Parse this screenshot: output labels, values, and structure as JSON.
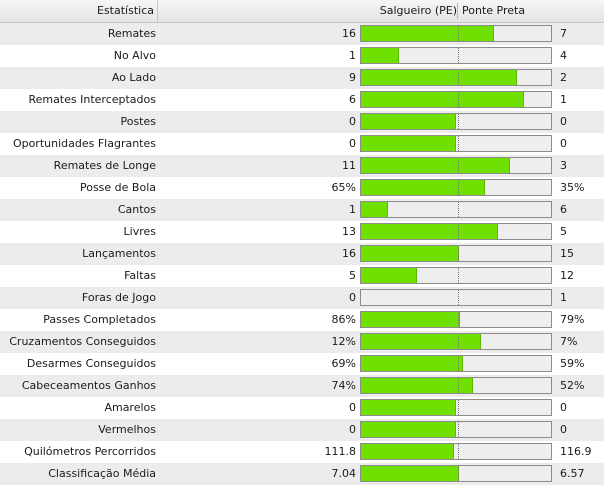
{
  "header": {
    "stat_label": "Estatística",
    "home_team": "Salgueiro (PE)",
    "away_team": "Ponte Preta"
  },
  "colors": {
    "bar_fill": "#6fe000",
    "bar_empty": "#eeeeee"
  },
  "rows": [
    {
      "label": "Remates",
      "home": "16",
      "away": "7",
      "home_share": 0.7
    },
    {
      "label": "No Alvo",
      "home": "1",
      "away": "4",
      "home_share": 0.2
    },
    {
      "label": "Ao Lado",
      "home": "9",
      "away": "2",
      "home_share": 0.82
    },
    {
      "label": "Remates Interceptados",
      "home": "6",
      "away": "1",
      "home_share": 0.857
    },
    {
      "label": "Postes",
      "home": "0",
      "away": "0",
      "home_share": 0.5
    },
    {
      "label": "Oportunidades Flagrantes",
      "home": "0",
      "away": "0",
      "home_share": 0.5
    },
    {
      "label": "Remates de Longe",
      "home": "11",
      "away": "3",
      "home_share": 0.786
    },
    {
      "label": "Posse de Bola",
      "home": "65%",
      "away": "35%",
      "home_share": 0.65
    },
    {
      "label": "Cantos",
      "home": "1",
      "away": "6",
      "home_share": 0.143
    },
    {
      "label": "Livres",
      "home": "13",
      "away": "5",
      "home_share": 0.722
    },
    {
      "label": "Lançamentos",
      "home": "16",
      "away": "15",
      "home_share": 0.516
    },
    {
      "label": "Faltas",
      "home": "5",
      "away": "12",
      "home_share": 0.294
    },
    {
      "label": "Foras de Jogo",
      "home": "0",
      "away": "1",
      "home_share": 0.0
    },
    {
      "label": "Passes Completados",
      "home": "86%",
      "away": "79%",
      "home_share": 0.521
    },
    {
      "label": "Cruzamentos Conseguidos",
      "home": "12%",
      "away": "7%",
      "home_share": 0.632
    },
    {
      "label": "Desarmes Conseguidos",
      "home": "69%",
      "away": "59%",
      "home_share": 0.539
    },
    {
      "label": "Cabeceamentos Ganhos",
      "home": "74%",
      "away": "52%",
      "home_share": 0.587
    },
    {
      "label": "Amarelos",
      "home": "0",
      "away": "0",
      "home_share": 0.5
    },
    {
      "label": "Vermelhos",
      "home": "0",
      "away": "0",
      "home_share": 0.5
    },
    {
      "label": "Quilómetros Percorridos",
      "home": "111.8",
      "away": "116.9",
      "home_share": 0.489
    },
    {
      "label": "Classificação Média",
      "home": "7.04",
      "away": "6.57",
      "home_share": 0.517
    }
  ]
}
